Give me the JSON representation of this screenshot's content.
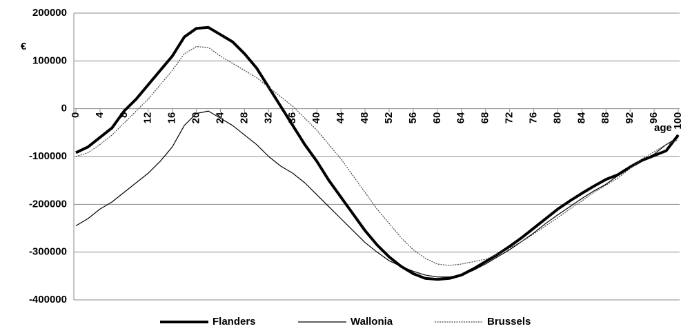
{
  "chart_data": {
    "type": "line",
    "y_label": "€",
    "x_label": "age",
    "x": [
      0,
      2,
      4,
      6,
      8,
      10,
      12,
      14,
      16,
      18,
      20,
      22,
      24,
      26,
      28,
      30,
      32,
      34,
      36,
      38,
      40,
      42,
      44,
      46,
      48,
      50,
      52,
      54,
      56,
      58,
      60,
      62,
      64,
      66,
      68,
      70,
      72,
      74,
      76,
      78,
      80,
      82,
      84,
      86,
      88,
      90,
      92,
      94,
      96,
      98,
      100
    ],
    "series": [
      {
        "name": "Flanders",
        "color": "#000000",
        "width": 4,
        "dash": "none",
        "values": [
          -92000,
          -80000,
          -60000,
          -40000,
          -5000,
          20000,
          50000,
          80000,
          110000,
          150000,
          168000,
          170000,
          155000,
          140000,
          115000,
          85000,
          45000,
          5000,
          -35000,
          -75000,
          -110000,
          -150000,
          -185000,
          -220000,
          -255000,
          -285000,
          -310000,
          -330000,
          -345000,
          -355000,
          -357000,
          -355000,
          -348000,
          -335000,
          -320000,
          -305000,
          -288000,
          -270000,
          -250000,
          -230000,
          -210000,
          -193000,
          -177000,
          -162000,
          -148000,
          -138000,
          -122000,
          -108000,
          -98000,
          -88000,
          -55000
        ]
      },
      {
        "name": "Wallonia",
        "color": "#000000",
        "width": 1.2,
        "dash": "none",
        "values": [
          -245000,
          -230000,
          -210000,
          -195000,
          -175000,
          -155000,
          -135000,
          -110000,
          -80000,
          -35000,
          -10000,
          -5000,
          -20000,
          -35000,
          -55000,
          -75000,
          -100000,
          -120000,
          -135000,
          -155000,
          -180000,
          -205000,
          -230000,
          -255000,
          -280000,
          -300000,
          -318000,
          -330000,
          -340000,
          -348000,
          -352000,
          -352000,
          -348000,
          -338000,
          -325000,
          -310000,
          -295000,
          -278000,
          -260000,
          -240000,
          -222000,
          -205000,
          -188000,
          -172000,
          -158000,
          -140000,
          -122000,
          -108000,
          -95000,
          -75000,
          -60000
        ]
      },
      {
        "name": "Brussels",
        "color": "#444444",
        "width": 1.2,
        "dash": "2,1.5",
        "values": [
          -100000,
          -92000,
          -75000,
          -55000,
          -30000,
          -5000,
          20000,
          50000,
          80000,
          115000,
          130000,
          128000,
          110000,
          95000,
          80000,
          65000,
          45000,
          25000,
          5000,
          -20000,
          -45000,
          -75000,
          -105000,
          -140000,
          -175000,
          -210000,
          -240000,
          -270000,
          -295000,
          -313000,
          -325000,
          -328000,
          -325000,
          -320000,
          -315000,
          -305000,
          -292000,
          -278000,
          -262000,
          -245000,
          -228000,
          -210000,
          -193000,
          -175000,
          -160000,
          -145000,
          -125000,
          -105000,
          -90000,
          -75000,
          -65000
        ]
      }
    ],
    "xlim": [
      0,
      100
    ],
    "xticks": [
      0,
      4,
      8,
      12,
      16,
      20,
      24,
      28,
      32,
      36,
      40,
      44,
      48,
      52,
      56,
      60,
      64,
      68,
      72,
      76,
      80,
      84,
      88,
      92,
      96,
      100
    ],
    "ylim": [
      -400000,
      200000
    ],
    "yticks": [
      200000,
      100000,
      0,
      -100000,
      -200000,
      -300000,
      -400000
    ],
    "grid": true,
    "legend": "bottom"
  }
}
